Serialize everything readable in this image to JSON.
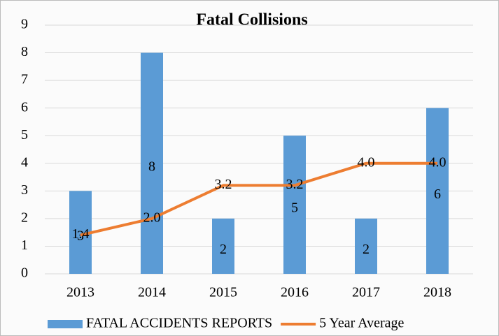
{
  "chart_data": {
    "type": "bar",
    "title": "Fatal Collisions",
    "categories": [
      "2013",
      "2014",
      "2015",
      "2016",
      "2017",
      "2018"
    ],
    "series": [
      {
        "name": "FATAL ACCIDENTS REPORTS",
        "type": "bar",
        "color": "#5b9bd5",
        "values": [
          3,
          8,
          2,
          5,
          2,
          6
        ]
      },
      {
        "name": "5 Year Average",
        "type": "line",
        "color": "#ed7d31",
        "values": [
          1.4,
          2.0,
          3.2,
          3.2,
          4.0,
          4.0
        ],
        "value_labels": [
          "1.4",
          "2.0",
          "3.2",
          "3.2",
          "4.0",
          "4.0"
        ]
      }
    ],
    "ylim": [
      0,
      9
    ],
    "yticks": [
      0,
      1,
      2,
      3,
      4,
      5,
      6,
      7,
      8,
      9
    ],
    "grid": true,
    "legend": "bottom"
  }
}
